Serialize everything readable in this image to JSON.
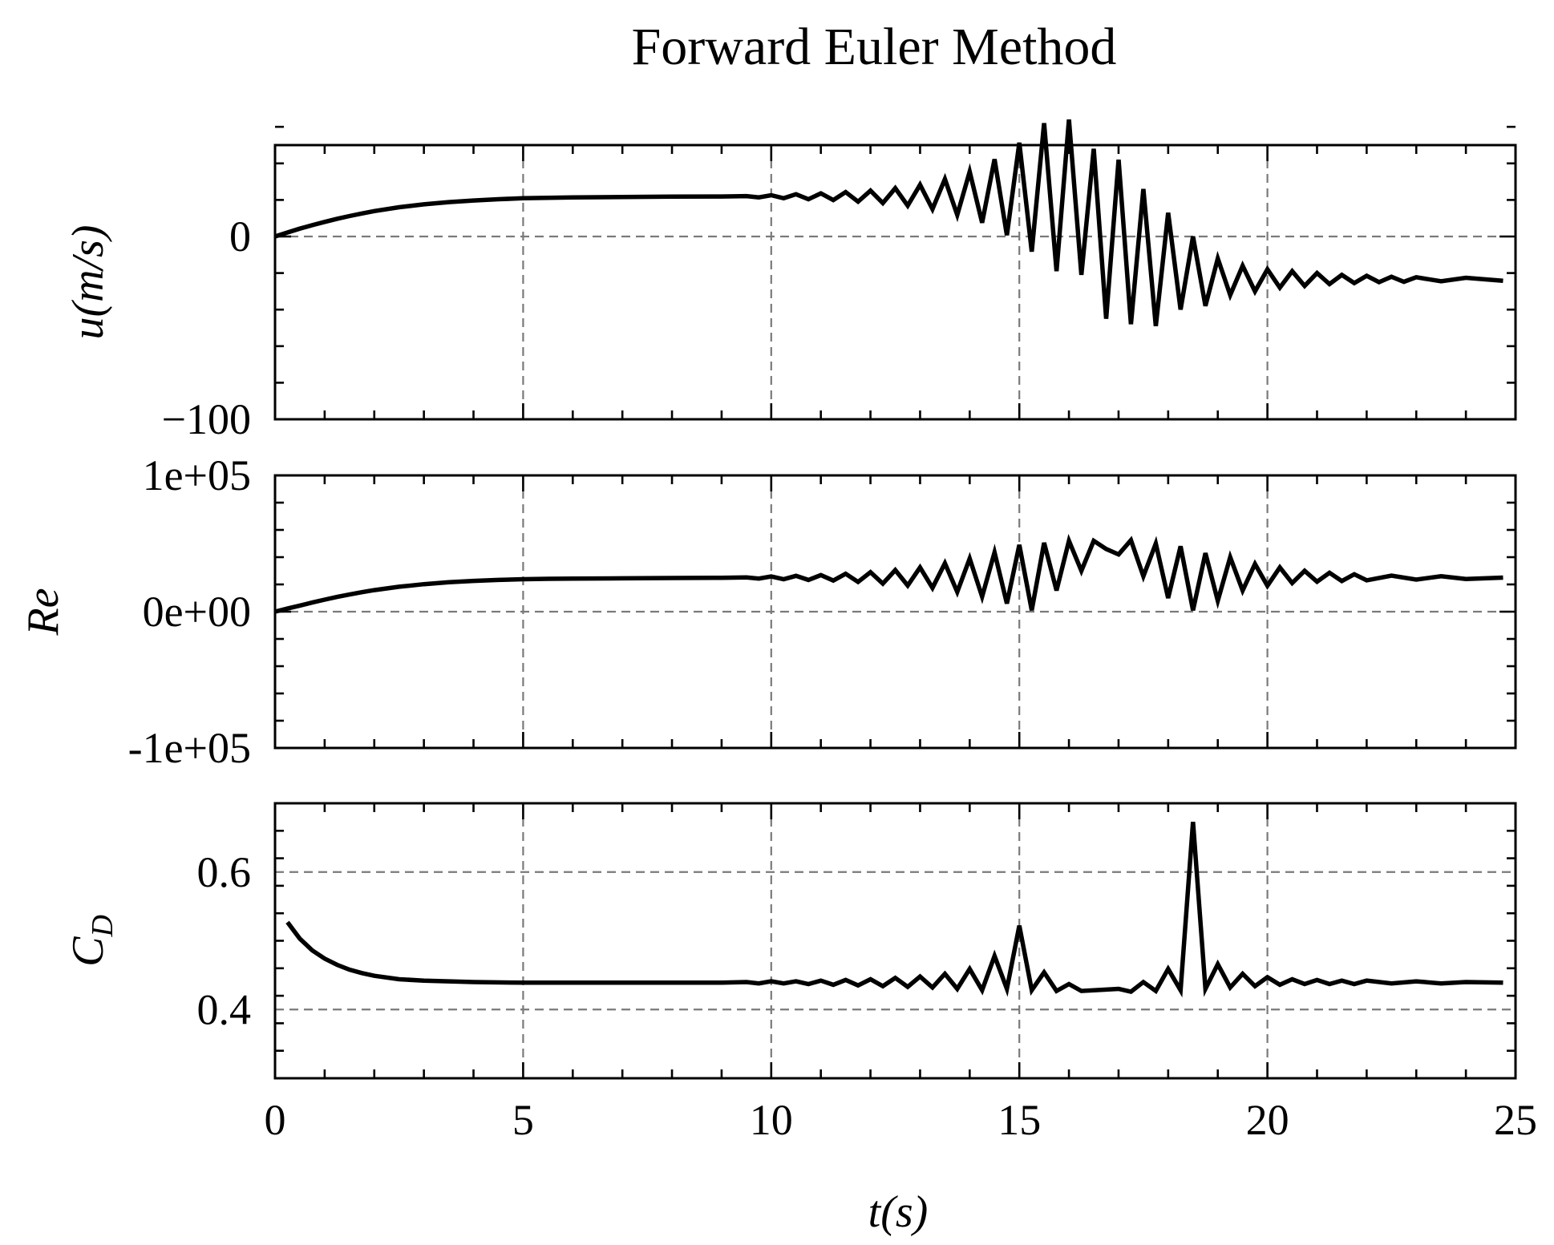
{
  "chart_data": [
    {
      "type": "line",
      "title": "Forward Euler Method",
      "ylabel": "u(m/s)",
      "xlabel": "",
      "xlim": [
        0,
        25
      ],
      "ylim": [
        -100,
        50
      ],
      "x_ticks": [
        0,
        5,
        10,
        15,
        20,
        25
      ],
      "x_tick_labels": [
        "",
        "",
        "",
        "",
        "",
        ""
      ],
      "y_ticks": [
        -100,
        0
      ],
      "y_tick_labels": [
        "−100",
        "0"
      ],
      "x_grid": [
        5,
        10,
        15,
        20
      ],
      "y_grid": [
        0
      ],
      "grid": true,
      "series": [
        {
          "values": [
            [
              0,
              0
            ],
            [
              0.25,
              2.2
            ],
            [
              0.5,
              4.3
            ],
            [
              0.75,
              6.2
            ],
            [
              1,
              8
            ],
            [
              1.25,
              9.7
            ],
            [
              1.5,
              11.2
            ],
            [
              1.75,
              12.6
            ],
            [
              2,
              13.9
            ],
            [
              2.5,
              16
            ],
            [
              3,
              17.6
            ],
            [
              3.5,
              18.8
            ],
            [
              4,
              19.7
            ],
            [
              4.5,
              20.4
            ],
            [
              5,
              20.9
            ],
            [
              5.5,
              21.2
            ],
            [
              6,
              21.4
            ],
            [
              7,
              21.6
            ],
            [
              8,
              21.8
            ],
            [
              9,
              21.9
            ],
            [
              9.5,
              22.1
            ],
            [
              9.75,
              21.4
            ],
            [
              10,
              22.6
            ],
            [
              10.25,
              20.9
            ],
            [
              10.5,
              23.1
            ],
            [
              10.75,
              20.4
            ],
            [
              11,
              23.6
            ],
            [
              11.25,
              19.9
            ],
            [
              11.5,
              24.3
            ],
            [
              11.75,
              19.1
            ],
            [
              12,
              25.1
            ],
            [
              12.25,
              18.3
            ],
            [
              12.5,
              26.4
            ],
            [
              12.75,
              16.9
            ],
            [
              13,
              28.3
            ],
            [
              13.25,
              15
            ],
            [
              13.5,
              31.4
            ],
            [
              13.75,
              11.8
            ],
            [
              14,
              35.5
            ],
            [
              14.25,
              7.5
            ],
            [
              14.5,
              42.3
            ],
            [
              14.75,
              0.7
            ],
            [
              15,
              51.3
            ],
            [
              15.25,
              -8.3
            ],
            [
              15.5,
              62
            ],
            [
              15.75,
              -19
            ],
            [
              16,
              64
            ],
            [
              16.25,
              -21
            ],
            [
              16.5,
              48
            ],
            [
              16.75,
              -45
            ],
            [
              17,
              42
            ],
            [
              17.25,
              -48
            ],
            [
              17.5,
              26
            ],
            [
              17.75,
              -49
            ],
            [
              18,
              13
            ],
            [
              18.25,
              -40
            ],
            [
              18.5,
              0
            ],
            [
              18.75,
              -38
            ],
            [
              19,
              -12
            ],
            [
              19.25,
              -32
            ],
            [
              19.5,
              -16
            ],
            [
              19.75,
              -30
            ],
            [
              20,
              -18
            ],
            [
              20.25,
              -28
            ],
            [
              20.5,
              -19
            ],
            [
              20.75,
              -27
            ],
            [
              21,
              -20
            ],
            [
              21.25,
              -26
            ],
            [
              21.5,
              -21
            ],
            [
              21.75,
              -25.5
            ],
            [
              22,
              -21.5
            ],
            [
              22.25,
              -25
            ],
            [
              22.5,
              -22
            ],
            [
              22.75,
              -24.8
            ],
            [
              23,
              -22.3
            ],
            [
              23.5,
              -24.5
            ],
            [
              24,
              -22.6
            ],
            [
              24.75,
              -24.2
            ]
          ]
        }
      ]
    },
    {
      "type": "line",
      "ylabel": "Re",
      "xlabel": "",
      "xlim": [
        0,
        25
      ],
      "ylim": [
        -100000,
        100000
      ],
      "x_ticks": [
        0,
        5,
        10,
        15,
        20,
        25
      ],
      "x_tick_labels": [
        "",
        "",
        "",
        "",
        "",
        ""
      ],
      "y_ticks": [
        -100000,
        0,
        100000
      ],
      "y_tick_labels": [
        "-1e+05",
        "0e+00",
        "1e+05"
      ],
      "x_grid": [
        5,
        10,
        15,
        20
      ],
      "y_grid": [
        0
      ],
      "grid": true,
      "series": [
        {
          "values": [
            [
              0,
              0
            ],
            [
              0.25,
              2300
            ],
            [
              0.5,
              4500
            ],
            [
              0.75,
              6700
            ],
            [
              1,
              8800
            ],
            [
              1.25,
              10800
            ],
            [
              1.5,
              12600
            ],
            [
              1.75,
              14300
            ],
            [
              2,
              15800
            ],
            [
              2.5,
              18300
            ],
            [
              3,
              20200
            ],
            [
              3.5,
              21600
            ],
            [
              4,
              22600
            ],
            [
              4.5,
              23300
            ],
            [
              5,
              23800
            ],
            [
              5.5,
              24100
            ],
            [
              6,
              24300
            ],
            [
              7,
              24500
            ],
            [
              8,
              24700
            ],
            [
              9,
              24900
            ],
            [
              9.5,
              25100
            ],
            [
              9.75,
              24300
            ],
            [
              10,
              25800
            ],
            [
              10.25,
              23800
            ],
            [
              10.5,
              26300
            ],
            [
              10.75,
              23300
            ],
            [
              11,
              26800
            ],
            [
              11.25,
              22800
            ],
            [
              11.5,
              27800
            ],
            [
              11.75,
              21800
            ],
            [
              12,
              29000
            ],
            [
              12.25,
              20600
            ],
            [
              12.5,
              30500
            ],
            [
              12.75,
              19200
            ],
            [
              13,
              32500
            ],
            [
              13.25,
              17500
            ],
            [
              13.5,
              35500
            ],
            [
              13.75,
              14500
            ],
            [
              14,
              39000
            ],
            [
              14.25,
              11000
            ],
            [
              14.5,
              43500
            ],
            [
              14.75,
              6000
            ],
            [
              15,
              49000
            ],
            [
              15.25,
              1000
            ],
            [
              15.5,
              50500
            ],
            [
              15.75,
              15500
            ],
            [
              16,
              52000
            ],
            [
              16.25,
              30000
            ],
            [
              16.5,
              52000
            ],
            [
              16.75,
              46000
            ],
            [
              17,
              42000
            ],
            [
              17.25,
              52500
            ],
            [
              17.5,
              26000
            ],
            [
              17.75,
              50000
            ],
            [
              18,
              10000
            ],
            [
              18.25,
              48000
            ],
            [
              18.5,
              1000
            ],
            [
              18.75,
              43000
            ],
            [
              19,
              8000
            ],
            [
              19.25,
              40000
            ],
            [
              19.5,
              15500
            ],
            [
              19.75,
              35000
            ],
            [
              20,
              19000
            ],
            [
              20.25,
              32500
            ],
            [
              20.5,
              21000
            ],
            [
              20.75,
              30000
            ],
            [
              21,
              22000
            ],
            [
              21.25,
              28500
            ],
            [
              21.5,
              22500
            ],
            [
              21.75,
              27500
            ],
            [
              22,
              23000
            ],
            [
              22.5,
              26500
            ],
            [
              23,
              23500
            ],
            [
              23.5,
              26000
            ],
            [
              24,
              24000
            ],
            [
              24.75,
              25000
            ]
          ]
        }
      ]
    },
    {
      "type": "line",
      "ylabel": "C_D",
      "xlabel": "t(s)",
      "xlim": [
        0,
        25
      ],
      "ylim": [
        0.3,
        0.7
      ],
      "x_ticks": [
        0,
        5,
        10,
        15,
        20,
        25
      ],
      "x_tick_labels": [
        "0",
        "5",
        "10",
        "15",
        "20",
        "25"
      ],
      "y_ticks": [
        0.4,
        0.6
      ],
      "y_tick_labels": [
        "0.4",
        "0.6"
      ],
      "x_grid": [
        5,
        10,
        15,
        20
      ],
      "y_grid": [
        0.4,
        0.6
      ],
      "grid": true,
      "series": [
        {
          "values": [
            [
              0.25,
              0.527
            ],
            [
              0.5,
              0.503
            ],
            [
              0.75,
              0.486
            ],
            [
              1,
              0.474
            ],
            [
              1.25,
              0.465
            ],
            [
              1.5,
              0.458
            ],
            [
              1.75,
              0.453
            ],
            [
              2,
              0.449
            ],
            [
              2.5,
              0.444
            ],
            [
              3,
              0.442
            ],
            [
              3.5,
              0.441
            ],
            [
              4,
              0.44
            ],
            [
              5,
              0.439
            ],
            [
              6,
              0.439
            ],
            [
              7,
              0.439
            ],
            [
              8,
              0.439
            ],
            [
              9,
              0.439
            ],
            [
              9.5,
              0.44
            ],
            [
              9.75,
              0.438
            ],
            [
              10,
              0.441
            ],
            [
              10.25,
              0.438
            ],
            [
              10.5,
              0.441
            ],
            [
              10.75,
              0.437
            ],
            [
              11,
              0.442
            ],
            [
              11.25,
              0.436
            ],
            [
              11.5,
              0.443
            ],
            [
              11.75,
              0.435
            ],
            [
              12,
              0.444
            ],
            [
              12.25,
              0.434
            ],
            [
              12.5,
              0.446
            ],
            [
              12.75,
              0.433
            ],
            [
              13,
              0.448
            ],
            [
              13.25,
              0.432
            ],
            [
              13.5,
              0.452
            ],
            [
              13.75,
              0.43
            ],
            [
              14,
              0.459
            ],
            [
              14.25,
              0.428
            ],
            [
              14.5,
              0.478
            ],
            [
              14.75,
              0.43
            ],
            [
              15,
              0.522
            ],
            [
              15.25,
              0.428
            ],
            [
              15.5,
              0.454
            ],
            [
              15.75,
              0.427
            ],
            [
              16,
              0.437
            ],
            [
              16.25,
              0.427
            ],
            [
              16.5,
              0.428
            ],
            [
              17,
              0.43
            ],
            [
              17.25,
              0.426
            ],
            [
              17.5,
              0.44
            ],
            [
              17.75,
              0.427
            ],
            [
              18,
              0.459
            ],
            [
              18.25,
              0.428
            ],
            [
              18.5,
              0.673
            ],
            [
              18.75,
              0.43
            ],
            [
              19,
              0.466
            ],
            [
              19.25,
              0.432
            ],
            [
              19.5,
              0.452
            ],
            [
              19.75,
              0.434
            ],
            [
              20,
              0.447
            ],
            [
              20.25,
              0.436
            ],
            [
              20.5,
              0.444
            ],
            [
              20.75,
              0.437
            ],
            [
              21,
              0.443
            ],
            [
              21.25,
              0.437
            ],
            [
              21.5,
              0.442
            ],
            [
              21.75,
              0.437
            ],
            [
              22,
              0.442
            ],
            [
              22.5,
              0.438
            ],
            [
              23,
              0.441
            ],
            [
              23.5,
              0.438
            ],
            [
              24,
              0.44
            ],
            [
              24.75,
              0.439
            ]
          ]
        }
      ]
    }
  ]
}
